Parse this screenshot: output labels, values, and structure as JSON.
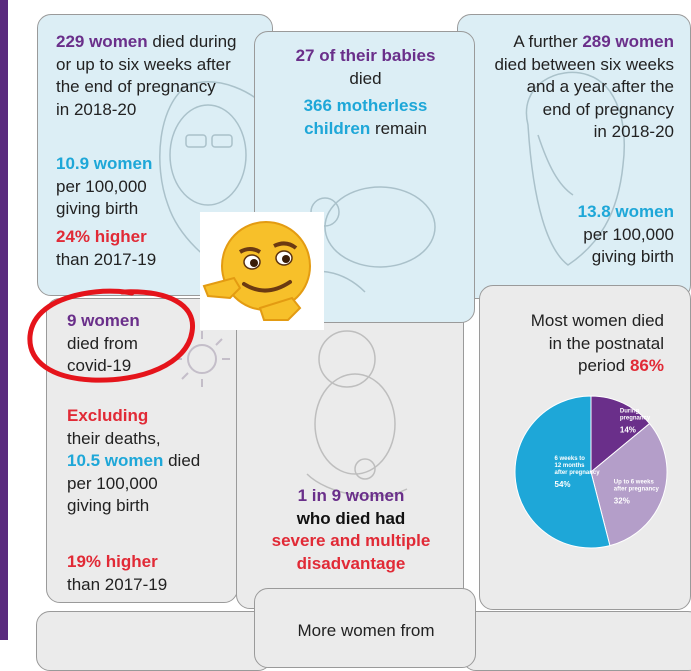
{
  "card_left_top": {
    "line1_num": "229 women",
    "line1_rest": " died during",
    "line2": "or up to six weeks after",
    "line3": "the end of pregnancy",
    "line4": "in 2018-20",
    "rate_num": "10.9 women",
    "rate_l2": "per 100,000",
    "rate_l3": "giving birth",
    "higher": "24% higher",
    "higher_l2": "than 2017-19"
  },
  "card_mid_top": {
    "babies": "27 of their babies",
    "died": "died",
    "motherless_1": "366 motherless",
    "motherless_2": "children",
    "remain": " remain"
  },
  "card_right_top": {
    "l1_pre": "A further ",
    "l1_num": "289 women",
    "l2": "died between six weeks",
    "l3": "and a year after the",
    "l4": "end of pregnancy",
    "l5": "in 2018-20",
    "rate_num": "13.8 women",
    "rate_l2": "per 100,000",
    "rate_l3": "giving birth"
  },
  "card_left_bottom": {
    "covid_num": "9 women",
    "covid_l2": "died from",
    "covid_l3": "covid-19",
    "excluding": "Excluding",
    "their": "their deaths,",
    "rate_num": "10.5 women",
    "rate_rest": " died",
    "rate_l2": "per 100,000",
    "rate_l3": "giving birth",
    "higher": "19% higher",
    "higher_l2": "than 2017-19"
  },
  "card_mid_bottom": {
    "l1": "1 in 9 women",
    "l2": "who died had",
    "l3": "severe and multiple",
    "l4": "disadvantage"
  },
  "card_right_bottom": {
    "l1": "Most women died",
    "l2": "in the postnatal",
    "l3_pre": "period ",
    "l3_num": "86%"
  },
  "card_bottom": {
    "l1": "More women from"
  },
  "chart_data": {
    "type": "pie",
    "slices": [
      {
        "label_lines": [
          "During",
          "pregnancy"
        ],
        "pct_label": "14%",
        "value": 14,
        "color": "#6a2f8a"
      },
      {
        "label_lines": [
          "Up to 6 weeks",
          "after pregnancy"
        ],
        "pct_label": "32%",
        "value": 32,
        "color": "#b49ec9"
      },
      {
        "label_lines": [
          "6 weeks to",
          "12 months",
          "after pregnancy"
        ],
        "pct_label": "54%",
        "value": 54,
        "color": "#1ea7d8"
      }
    ]
  },
  "colors": {
    "purple": "#6a2f8a",
    "cyan": "#1ea7d8",
    "red": "#e12a36",
    "panel_blue": "#dceef5",
    "panel_grey": "#ebebeb",
    "annotation_red": "#e5141b"
  },
  "overlay": {
    "emoji_icon": "smirking-pointing-emoji-icon",
    "annotation": "red-hand-drawn-circle"
  }
}
